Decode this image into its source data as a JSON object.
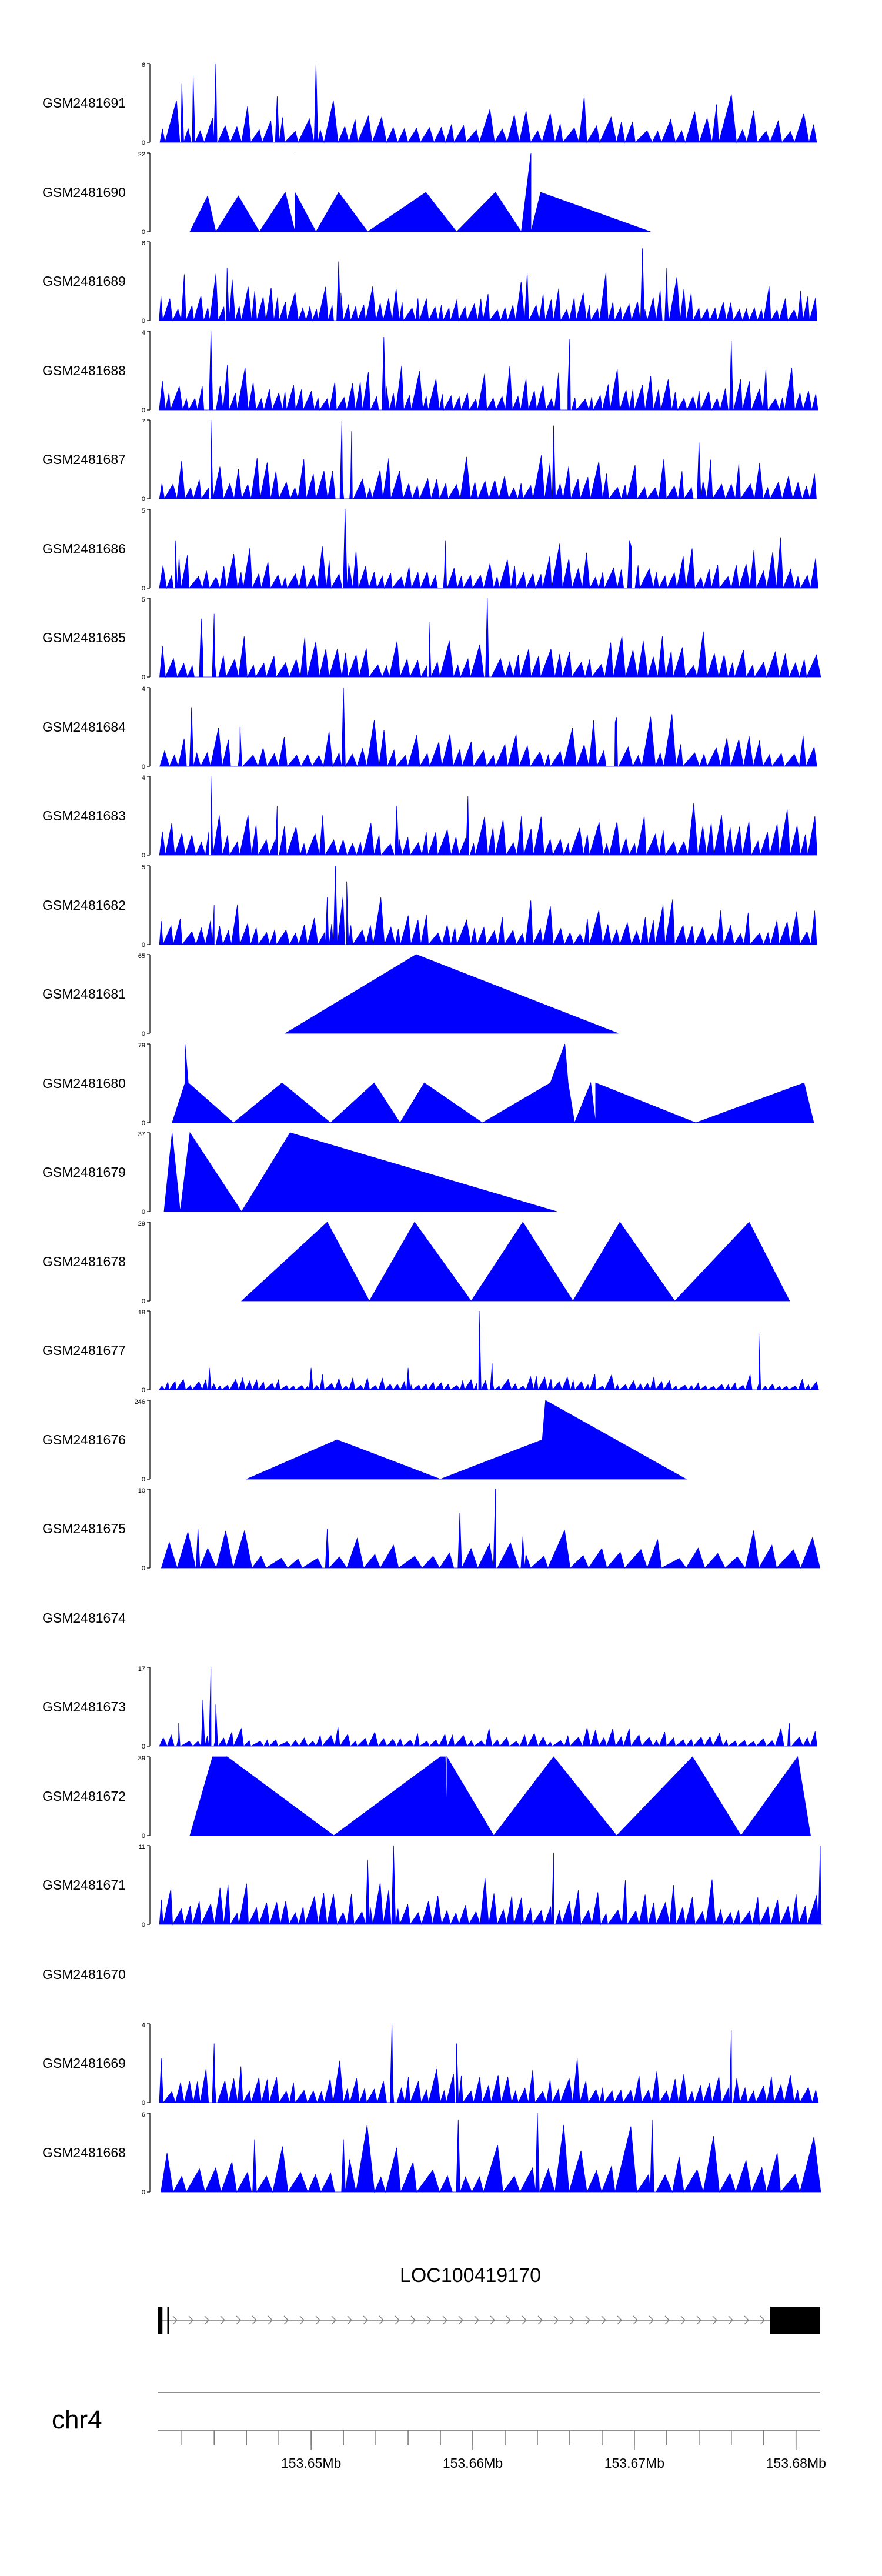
{
  "colors": {
    "track_fill": "#0000ff",
    "axis": "#7f7f7f",
    "gene_body": "#000000",
    "text": "#000000"
  },
  "chart_data": {
    "type": "area",
    "title": "",
    "genome": {
      "chromosome": "chr4",
      "xlim_mb": [
        153.6405,
        153.6815
      ]
    },
    "x_ticks": [
      {
        "value": 153.65,
        "label": "153.65Mb"
      },
      {
        "value": 153.66,
        "label": "153.66Mb"
      },
      {
        "value": 153.67,
        "label": "153.67Mb"
      },
      {
        "value": 153.68,
        "label": "153.68Mb"
      }
    ],
    "gene": {
      "name": "LOC100419170",
      "start": 153.6405,
      "end": 153.6815,
      "strand": "+",
      "exons": [
        [
          153.6405,
          153.6408
        ],
        [
          153.6411,
          153.6412
        ],
        [
          153.6784,
          153.6815
        ]
      ]
    },
    "tracks": [
      {
        "name": "GSM2481691",
        "ymax": 6,
        "kind": "dense",
        "seed": 91,
        "density": 55,
        "spikes": [
          [
            153.6441,
            6
          ],
          [
            153.6503,
            6
          ],
          [
            153.6427,
            5
          ],
          [
            153.642,
            4.5
          ],
          [
            153.6479,
            3.5
          ]
        ]
      },
      {
        "name": "GSM2481690",
        "ymax": 22,
        "kind": "sparse",
        "points": [
          [
            153.6425,
            0
          ],
          [
            153.6436,
            10
          ],
          [
            153.6441,
            0
          ],
          [
            153.6455,
            10
          ],
          [
            153.6468,
            0
          ],
          [
            153.6484,
            11
          ],
          [
            153.649,
            0
          ],
          [
            153.649,
            22
          ],
          [
            153.649,
            11
          ],
          [
            153.6503,
            0
          ],
          [
            153.6517,
            11
          ],
          [
            153.6535,
            0
          ],
          [
            153.6571,
            11
          ],
          [
            153.659,
            0
          ],
          [
            153.6614,
            11
          ],
          [
            153.663,
            0
          ],
          [
            153.6636,
            22
          ],
          [
            153.6636,
            0
          ],
          [
            153.6642,
            11
          ],
          [
            153.671,
            0
          ]
        ]
      },
      {
        "name": "GSM2481689",
        "ymax": 6,
        "kind": "dense",
        "seed": 89,
        "density": 85,
        "spikes": [
          [
            153.6705,
            5.5
          ],
          [
            153.6517,
            4.5
          ],
          [
            153.6448,
            4
          ],
          [
            153.672,
            4
          ]
        ]
      },
      {
        "name": "GSM2481688",
        "ymax": 4,
        "kind": "dense",
        "seed": 88,
        "density": 80,
        "spikes": [
          [
            153.6438,
            4
          ],
          [
            153.6545,
            3.7
          ],
          [
            153.666,
            3.6
          ],
          [
            153.676,
            3.5
          ]
        ]
      },
      {
        "name": "GSM2481687",
        "ymax": 7,
        "kind": "dense",
        "seed": 87,
        "density": 70,
        "spikes": [
          [
            153.6438,
            7
          ],
          [
            153.6519,
            7
          ],
          [
            153.6525,
            6
          ],
          [
            153.665,
            6.5
          ],
          [
            153.674,
            5
          ]
        ]
      },
      {
        "name": "GSM2481686",
        "ymax": 5,
        "kind": "dense",
        "seed": 86,
        "density": 75,
        "spikes": [
          [
            153.6521,
            5
          ],
          [
            153.6416,
            3
          ],
          [
            153.6583,
            3
          ],
          [
            153.6697,
            3
          ]
        ]
      },
      {
        "name": "GSM2481685",
        "ymax": 5,
        "kind": "dense",
        "seed": 85,
        "density": 65,
        "spikes": [
          [
            153.6609,
            5
          ],
          [
            153.644,
            4
          ],
          [
            153.6432,
            3.7
          ],
          [
            153.6573,
            3.5
          ]
        ]
      },
      {
        "name": "GSM2481684",
        "ymax": 4,
        "kind": "dense",
        "seed": 84,
        "density": 60,
        "spikes": [
          [
            153.652,
            4
          ],
          [
            153.6426,
            3
          ],
          [
            153.6689,
            2.5
          ],
          [
            153.6456,
            2
          ]
        ]
      },
      {
        "name": "GSM2481683",
        "ymax": 4,
        "kind": "dense",
        "seed": 83,
        "density": 70,
        "spikes": [
          [
            153.6438,
            4
          ],
          [
            153.6597,
            3
          ],
          [
            153.6479,
            2.5
          ],
          [
            153.6553,
            2.5
          ]
        ]
      },
      {
        "name": "GSM2481682",
        "ymax": 5,
        "kind": "dense",
        "seed": 82,
        "density": 70,
        "spikes": [
          [
            153.6515,
            5
          ],
          [
            153.6522,
            4
          ],
          [
            153.651,
            3
          ],
          [
            153.644,
            2.5
          ]
        ]
      },
      {
        "name": "GSM2481681",
        "ymax": 65,
        "kind": "sparse",
        "points": [
          [
            153.6484,
            0
          ],
          [
            153.6565,
            65
          ],
          [
            153.669,
            0
          ]
        ]
      },
      {
        "name": "GSM2481680",
        "ymax": 79,
        "kind": "sparse",
        "points": [
          [
            153.6414,
            0
          ],
          [
            153.6422,
            40
          ],
          [
            153.6422,
            79
          ],
          [
            153.6424,
            40
          ],
          [
            153.6452,
            0
          ],
          [
            153.6482,
            40
          ],
          [
            153.6512,
            0
          ],
          [
            153.6539,
            40
          ],
          [
            153.6555,
            0
          ],
          [
            153.657,
            40
          ],
          [
            153.6606,
            0
          ],
          [
            153.6648,
            40
          ],
          [
            153.6657,
            79
          ],
          [
            153.6659,
            40
          ],
          [
            153.6663,
            0
          ],
          [
            153.6673,
            40
          ],
          [
            153.6676,
            0
          ],
          [
            153.6676,
            40
          ],
          [
            153.6738,
            0
          ],
          [
            153.6805,
            40
          ],
          [
            153.6811,
            0
          ]
        ]
      },
      {
        "name": "GSM2481679",
        "ymax": 37,
        "kind": "sparse",
        "points": [
          [
            153.6409,
            0
          ],
          [
            153.6414,
            37
          ],
          [
            153.6419,
            0
          ],
          [
            153.6425,
            37
          ],
          [
            153.6457,
            0
          ],
          [
            153.6487,
            37
          ],
          [
            153.6652,
            0
          ]
        ]
      },
      {
        "name": "GSM2481678",
        "ymax": 29,
        "kind": "sparse",
        "points": [
          [
            153.6457,
            0
          ],
          [
            153.651,
            29
          ],
          [
            153.6536,
            0
          ],
          [
            153.6564,
            29
          ],
          [
            153.6599,
            0
          ],
          [
            153.6631,
            29
          ],
          [
            153.6662,
            0
          ],
          [
            153.6691,
            29
          ],
          [
            153.6725,
            0
          ],
          [
            153.6771,
            29
          ],
          [
            153.6796,
            0
          ]
        ]
      },
      {
        "name": "GSM2481677",
        "ymax": 18,
        "kind": "dense",
        "seed": 77,
        "density": 90,
        "amp": 0.18,
        "spikes": [
          [
            153.6604,
            18
          ],
          [
            153.6777,
            13
          ],
          [
            153.6437,
            5
          ],
          [
            153.65,
            5
          ],
          [
            153.656,
            5
          ],
          [
            153.6612,
            6
          ]
        ]
      },
      {
        "name": "GSM2481676",
        "ymax": 246,
        "kind": "sparse",
        "points": [
          [
            153.646,
            0
          ],
          [
            153.6516,
            123
          ],
          [
            153.658,
            0
          ],
          [
            153.6643,
            123
          ],
          [
            153.6645,
            246
          ],
          [
            153.6732,
            0
          ]
        ]
      },
      {
        "name": "GSM2481675",
        "ymax": 10,
        "kind": "dense",
        "seed": 75,
        "density": 35,
        "amp": 0.45,
        "spikes": [
          [
            153.6614,
            10
          ],
          [
            153.6592,
            7
          ],
          [
            153.6631,
            4
          ],
          [
            153.643,
            5
          ],
          [
            153.651,
            5
          ]
        ]
      },
      {
        "name": "GSM2481674",
        "ymax": null,
        "kind": "empty"
      },
      {
        "name": "GSM2481673",
        "ymax": 17,
        "kind": "dense",
        "seed": 73,
        "density": 75,
        "amp": 0.22,
        "spikes": [
          [
            153.6438,
            17
          ],
          [
            153.6433,
            10
          ],
          [
            153.6441,
            9
          ],
          [
            153.6418,
            5
          ],
          [
            153.6796,
            5
          ]
        ]
      },
      {
        "name": "GSM2481672",
        "ymax": 39,
        "kind": "sparse",
        "points": [
          [
            153.6425,
            0
          ],
          [
            153.6439,
            39
          ],
          [
            153.6448,
            39
          ],
          [
            153.645,
            0
          ],
          [
            153.6448,
            39
          ],
          [
            153.6514,
            0
          ],
          [
            153.658,
            39
          ],
          [
            153.6583,
            39
          ],
          [
            153.6584,
            10
          ],
          [
            153.6584,
            39
          ],
          [
            153.6613,
            0
          ],
          [
            153.665,
            39
          ],
          [
            153.6689,
            0
          ],
          [
            153.6736,
            39
          ],
          [
            153.6766,
            0
          ],
          [
            153.6801,
            39
          ],
          [
            153.6809,
            0
          ]
        ]
      },
      {
        "name": "GSM2481671",
        "ymax": 11,
        "kind": "dense",
        "seed": 71,
        "density": 70,
        "spikes": [
          [
            153.6815,
            11
          ],
          [
            153.6551,
            11
          ],
          [
            153.665,
            10
          ],
          [
            153.6535,
            9
          ]
        ]
      },
      {
        "name": "GSM2481670",
        "ymax": null,
        "kind": "empty"
      },
      {
        "name": "GSM2481669",
        "ymax": 4,
        "kind": "dense",
        "seed": 69,
        "density": 75,
        "spikes": [
          [
            153.655,
            4
          ],
          [
            153.676,
            3.7
          ],
          [
            153.644,
            3
          ],
          [
            153.659,
            3
          ]
        ]
      },
      {
        "name": "GSM2481668",
        "ymax": 6,
        "kind": "dense",
        "seed": 68,
        "density": 40,
        "amp": 0.75,
        "spikes": [
          [
            153.664,
            6
          ],
          [
            153.6591,
            5.5
          ],
          [
            153.6711,
            5.5
          ],
          [
            153.6465,
            4
          ],
          [
            153.652,
            4
          ]
        ]
      }
    ]
  }
}
